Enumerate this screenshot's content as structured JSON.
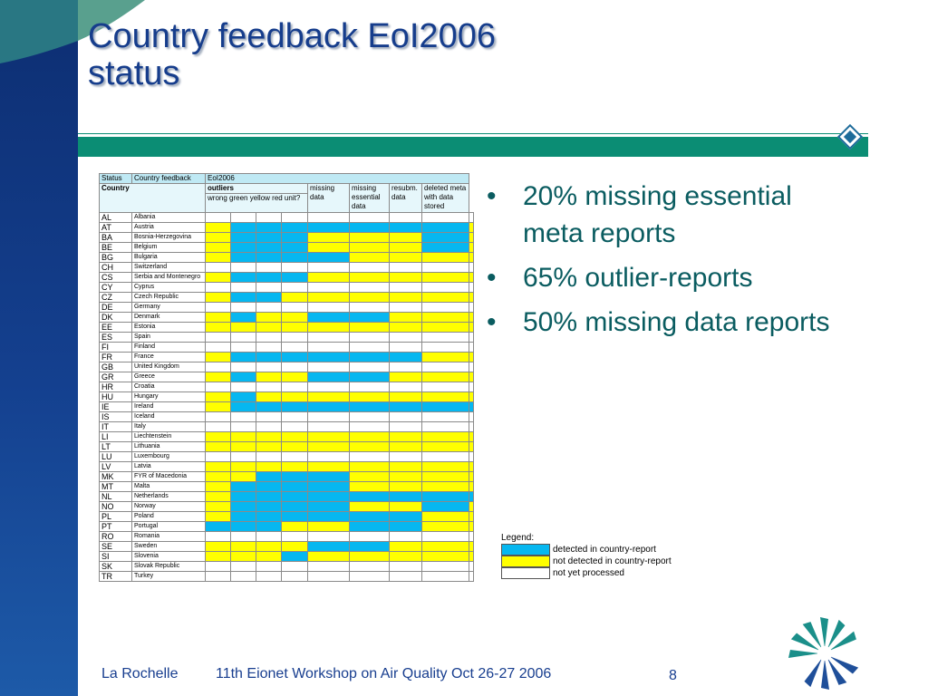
{
  "slide": {
    "title_line1": "Country feedback EoI2006",
    "title_line2": "status",
    "page_number": "8"
  },
  "footer": {
    "location": "La Rochelle",
    "event": "11th Eionet Workshop on Air Quality Oct 26-27 2006"
  },
  "bullets": [
    "20% missing essential meta reports",
    "65% outlier-reports",
    "50% missing data reports"
  ],
  "table": {
    "top_labels": [
      "Status",
      "Country feedback",
      "EoI2006"
    ],
    "header": {
      "country": "Country",
      "outliers": "outliers",
      "missing_data": "missing data",
      "missing_essential_data": "missing essential data",
      "resubm_data": "resubm. data",
      "deleted_meta": "deleted meta with data stored",
      "sub_outliers": "wrong  green  yellow  red unit?"
    },
    "colors": {
      "b": "#06b7f0",
      "y": "#ffff00",
      "w": "#ffffff"
    },
    "rows": [
      {
        "code": "AL",
        "name": "Albania",
        "cells": "wwwwwwwww"
      },
      {
        "code": "AT",
        "name": "Austria",
        "cells": "ybbbbbbby"
      },
      {
        "code": "BA",
        "name": "Bosnia-Herzegovina",
        "cells": "ybbbyyyby"
      },
      {
        "code": "BE",
        "name": "Belgium",
        "cells": "ybbbyyyby"
      },
      {
        "code": "BG",
        "name": "Bulgaria",
        "cells": "ybbbbyyyy"
      },
      {
        "code": "CH",
        "name": "Switzerland",
        "cells": "wwwwwwwww"
      },
      {
        "code": "CS",
        "name": "Serbia and Montenegro",
        "cells": "ybbbyyyyy"
      },
      {
        "code": "CY",
        "name": "Cyprus",
        "cells": "wwwwwwwww"
      },
      {
        "code": "CZ",
        "name": "Czech Republic",
        "cells": "ybbyyyyyy"
      },
      {
        "code": "DE",
        "name": "Germany",
        "cells": "wwwwwwwww"
      },
      {
        "code": "DK",
        "name": "Denmark",
        "cells": "ybyybbyyy"
      },
      {
        "code": "EE",
        "name": "Estonia",
        "cells": "yyyyyyyyy"
      },
      {
        "code": "ES",
        "name": "Spain",
        "cells": "wwwwwwwww"
      },
      {
        "code": "FI",
        "name": "Finland",
        "cells": "wwwwwwwww"
      },
      {
        "code": "FR",
        "name": "France",
        "cells": "ybbbbbbyy"
      },
      {
        "code": "GB",
        "name": "United Kingdom",
        "cells": "wwwwwwwww"
      },
      {
        "code": "GR",
        "name": "Greece",
        "cells": "ybyybbyyy"
      },
      {
        "code": "HR",
        "name": "Croatia",
        "cells": "wwwwwwwww"
      },
      {
        "code": "HU",
        "name": "Hungary",
        "cells": "ybyyyyyyy"
      },
      {
        "code": "IE",
        "name": "Ireland",
        "cells": "ybbbbbbbb"
      },
      {
        "code": "IS",
        "name": "Iceland",
        "cells": "wwwwwwwww"
      },
      {
        "code": "IT",
        "name": "Italy",
        "cells": "wwwwwwwww"
      },
      {
        "code": "LI",
        "name": "Liechtenstein",
        "cells": "yyyyyyyyy"
      },
      {
        "code": "LT",
        "name": "Lithuania",
        "cells": "yyyyyyyyy"
      },
      {
        "code": "LU",
        "name": "Luxembourg",
        "cells": "wwwwwwwww"
      },
      {
        "code": "LV",
        "name": "Latvia",
        "cells": "yyyyyyyyy"
      },
      {
        "code": "MK",
        "name": "FYR of Macedonia",
        "cells": "yybbbyyyy"
      },
      {
        "code": "MT",
        "name": "Malta",
        "cells": "ybbbbyyyy"
      },
      {
        "code": "NL",
        "name": "Netherlands",
        "cells": "ybbbbbbbb"
      },
      {
        "code": "NO",
        "name": "Norway",
        "cells": "ybbbbyyby"
      },
      {
        "code": "PL",
        "name": "Poland",
        "cells": "ybbbbbbyy"
      },
      {
        "code": "PT",
        "name": "Portugal",
        "cells": "bbbyybbyy"
      },
      {
        "code": "RO",
        "name": "Romania",
        "cells": "wwwwwwwww"
      },
      {
        "code": "SE",
        "name": "Sweden",
        "cells": "yyyybbyyy"
      },
      {
        "code": "SI",
        "name": "Slovenia",
        "cells": "yyybyyyyy"
      },
      {
        "code": "SK",
        "name": "Slovak Republic",
        "cells": "wwwwwwwww"
      },
      {
        "code": "TR",
        "name": "Turkey",
        "cells": "wwwwwwwww"
      }
    ]
  },
  "legend": {
    "title": "Legend:",
    "items": [
      {
        "key": "b",
        "label": "detected in country-report"
      },
      {
        "key": "y",
        "label": "not detected in country-report"
      },
      {
        "key": "w",
        "label": "not yet processed"
      }
    ]
  }
}
